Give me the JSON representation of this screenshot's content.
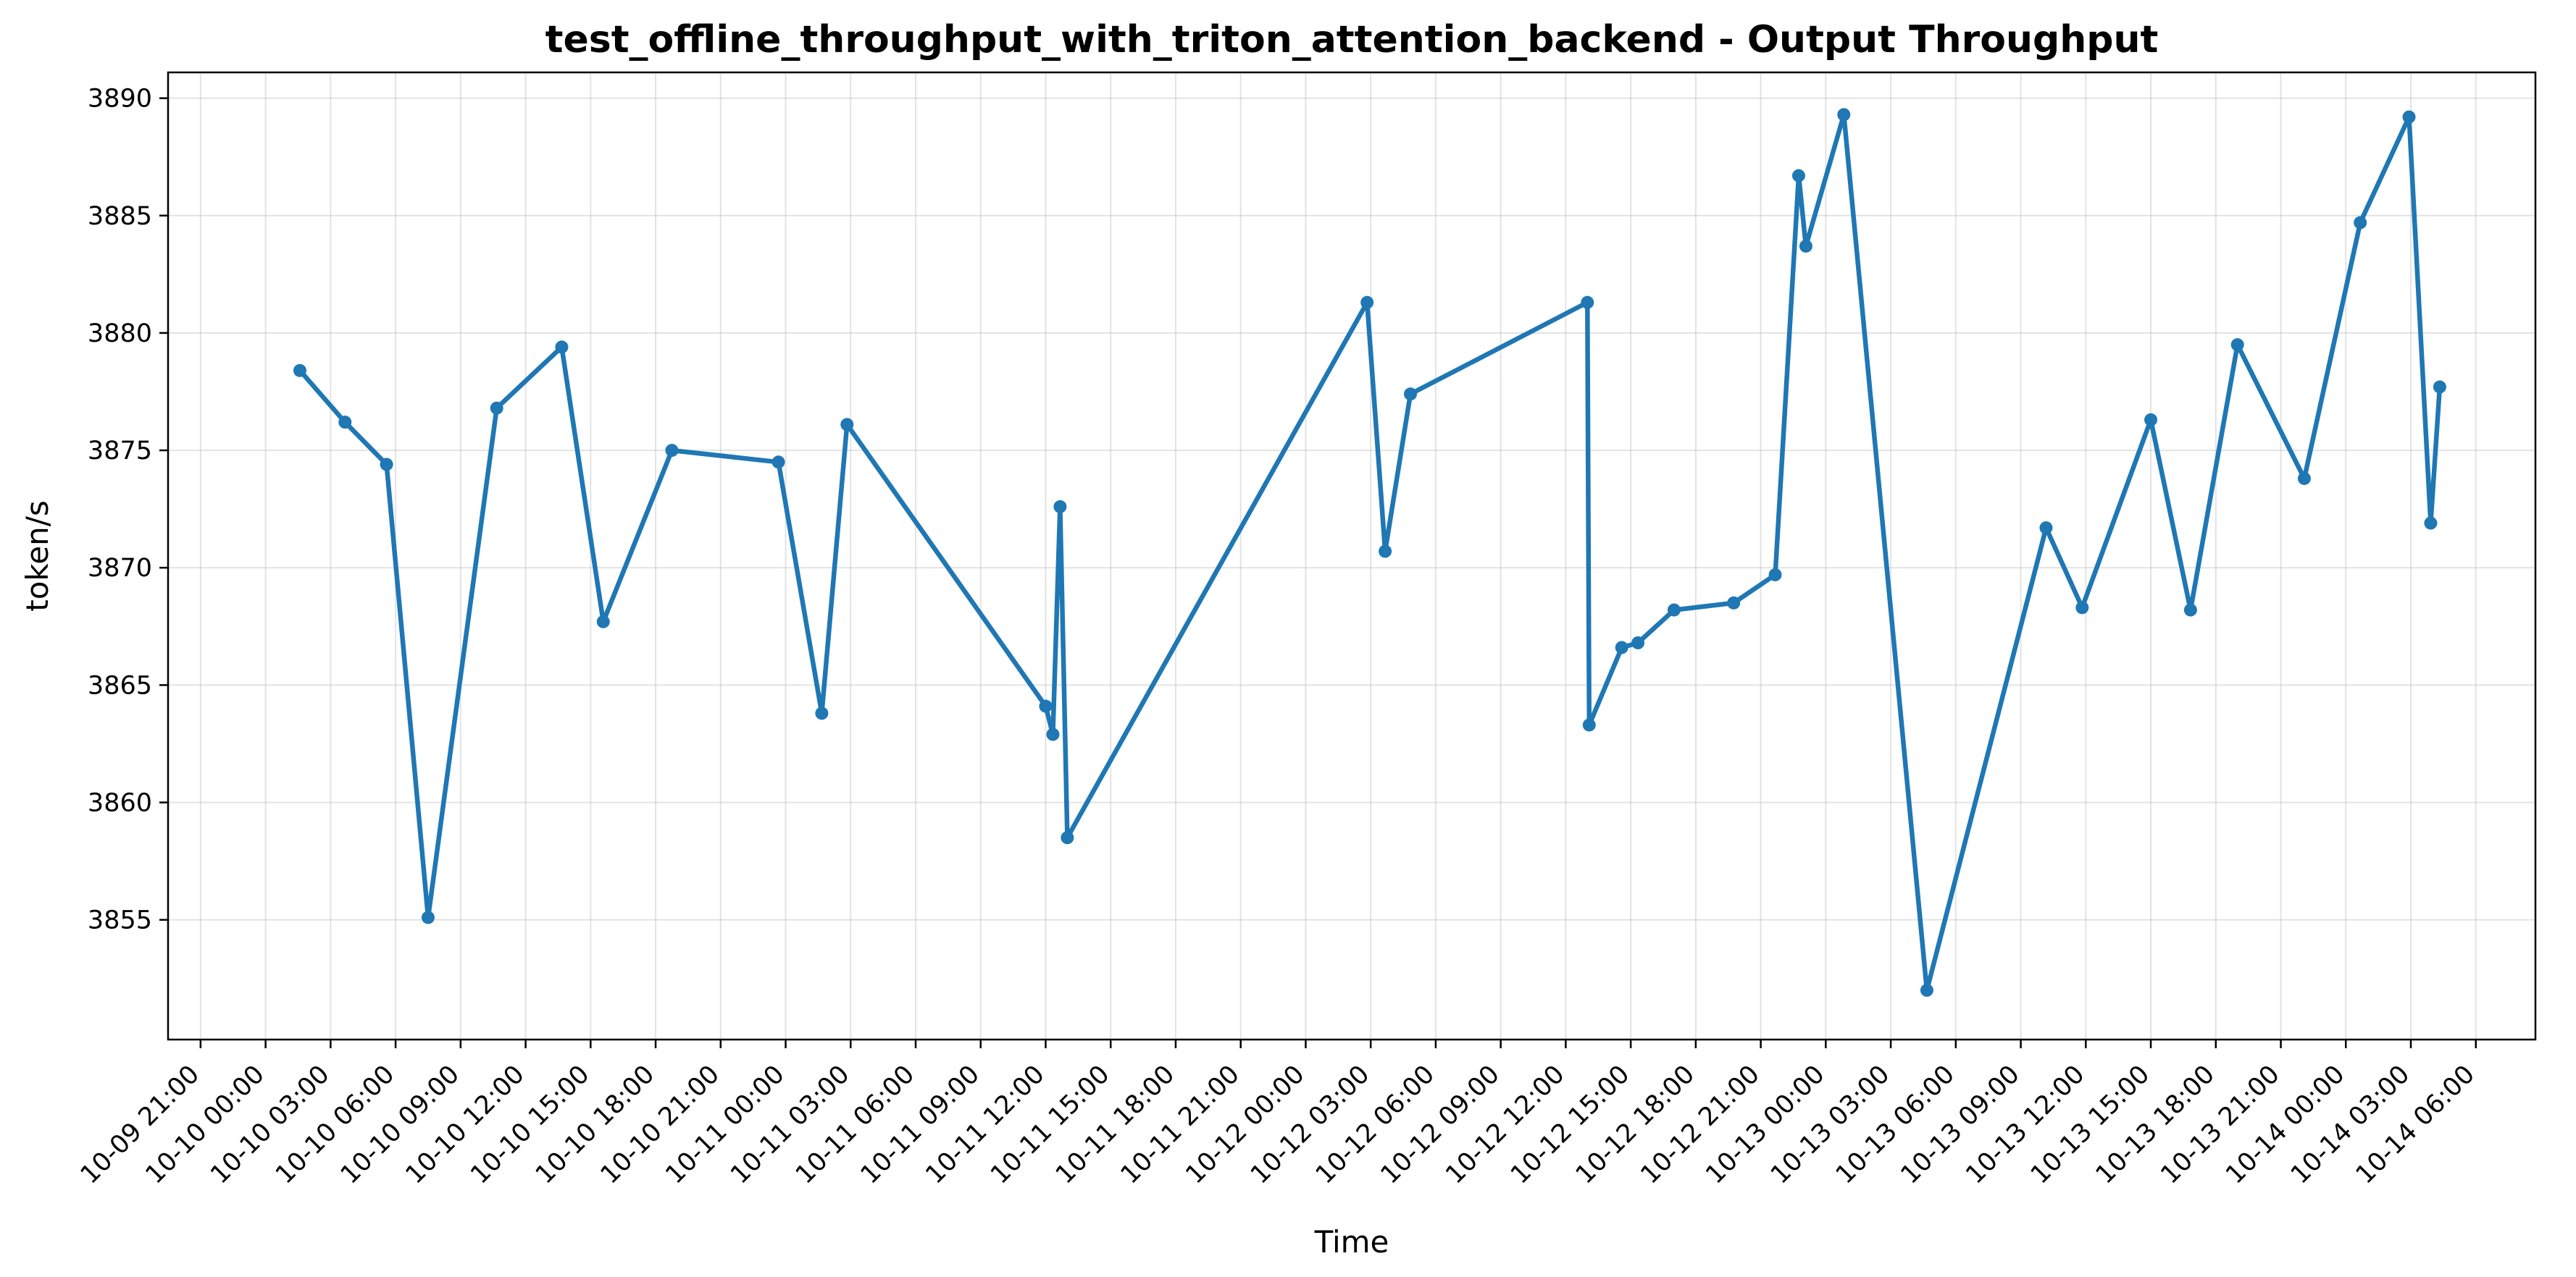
{
  "chart_data": {
    "type": "line",
    "title": "test_offline_throughput_with_triton_attention_backend - Output Throughput",
    "xlabel": "Time",
    "ylabel": "token/s",
    "xlim": [
      "2024-10-09 19:30",
      "2024-10-14 08:45"
    ],
    "ylim": [
      3849.9,
      3891.1
    ],
    "grid": true,
    "y_ticks": [
      3855,
      3860,
      3865,
      3870,
      3875,
      3880,
      3885,
      3890
    ],
    "x_ticks": [
      {
        "t": "2024-10-09 21:00",
        "label": "10-09 21:00"
      },
      {
        "t": "2024-10-10 00:00",
        "label": "10-10 00:00"
      },
      {
        "t": "2024-10-10 03:00",
        "label": "10-10 03:00"
      },
      {
        "t": "2024-10-10 06:00",
        "label": "10-10 06:00"
      },
      {
        "t": "2024-10-10 09:00",
        "label": "10-10 09:00"
      },
      {
        "t": "2024-10-10 12:00",
        "label": "10-10 12:00"
      },
      {
        "t": "2024-10-10 15:00",
        "label": "10-10 15:00"
      },
      {
        "t": "2024-10-10 18:00",
        "label": "10-10 18:00"
      },
      {
        "t": "2024-10-10 21:00",
        "label": "10-10 21:00"
      },
      {
        "t": "2024-10-11 00:00",
        "label": "10-11 00:00"
      },
      {
        "t": "2024-10-11 03:00",
        "label": "10-11 03:00"
      },
      {
        "t": "2024-10-11 06:00",
        "label": "10-11 06:00"
      },
      {
        "t": "2024-10-11 09:00",
        "label": "10-11 09:00"
      },
      {
        "t": "2024-10-11 12:00",
        "label": "10-11 12:00"
      },
      {
        "t": "2024-10-11 15:00",
        "label": "10-11 15:00"
      },
      {
        "t": "2024-10-11 18:00",
        "label": "10-11 18:00"
      },
      {
        "t": "2024-10-11 21:00",
        "label": "10-11 21:00"
      },
      {
        "t": "2024-10-12 00:00",
        "label": "10-12 00:00"
      },
      {
        "t": "2024-10-12 03:00",
        "label": "10-12 03:00"
      },
      {
        "t": "2024-10-12 06:00",
        "label": "10-12 06:00"
      },
      {
        "t": "2024-10-12 09:00",
        "label": "10-12 09:00"
      },
      {
        "t": "2024-10-12 12:00",
        "label": "10-12 12:00"
      },
      {
        "t": "2024-10-12 15:00",
        "label": "10-12 15:00"
      },
      {
        "t": "2024-10-12 18:00",
        "label": "10-12 18:00"
      },
      {
        "t": "2024-10-12 21:00",
        "label": "10-12 21:00"
      },
      {
        "t": "2024-10-13 00:00",
        "label": "10-13 00:00"
      },
      {
        "t": "2024-10-13 03:00",
        "label": "10-13 03:00"
      },
      {
        "t": "2024-10-13 06:00",
        "label": "10-13 06:00"
      },
      {
        "t": "2024-10-13 09:00",
        "label": "10-13 09:00"
      },
      {
        "t": "2024-10-13 12:00",
        "label": "10-13 12:00"
      },
      {
        "t": "2024-10-13 15:00",
        "label": "10-13 15:00"
      },
      {
        "t": "2024-10-13 18:00",
        "label": "10-13 18:00"
      },
      {
        "t": "2024-10-13 21:00",
        "label": "10-13 21:00"
      },
      {
        "t": "2024-10-14 00:00",
        "label": "10-14 00:00"
      },
      {
        "t": "2024-10-14 03:00",
        "label": "10-14 03:00"
      },
      {
        "t": "2024-10-14 06:00",
        "label": "10-14 06:00"
      }
    ],
    "series": [
      {
        "color": "#1f77b4",
        "points": [
          {
            "x": "2024-10-10 01:35",
            "y": 3878.4
          },
          {
            "x": "2024-10-10 03:40",
            "y": 3876.2
          },
          {
            "x": "2024-10-10 05:35",
            "y": 3874.4
          },
          {
            "x": "2024-10-10 07:30",
            "y": 3855.1
          },
          {
            "x": "2024-10-10 10:40",
            "y": 3876.8
          },
          {
            "x": "2024-10-10 13:40",
            "y": 3879.4
          },
          {
            "x": "2024-10-10 15:35",
            "y": 3867.7
          },
          {
            "x": "2024-10-10 18:45",
            "y": 3875.0
          },
          {
            "x": "2024-10-10 23:40",
            "y": 3874.5
          },
          {
            "x": "2024-10-11 01:40",
            "y": 3863.8
          },
          {
            "x": "2024-10-11 02:50",
            "y": 3876.1
          },
          {
            "x": "2024-10-11 12:00",
            "y": 3864.1
          },
          {
            "x": "2024-10-11 12:20",
            "y": 3862.9
          },
          {
            "x": "2024-10-11 12:40",
            "y": 3872.6
          },
          {
            "x": "2024-10-11 13:00",
            "y": 3858.5
          },
          {
            "x": "2024-10-12 02:50",
            "y": 3881.3
          },
          {
            "x": "2024-10-12 03:40",
            "y": 3870.7
          },
          {
            "x": "2024-10-12 04:50",
            "y": 3877.4
          },
          {
            "x": "2024-10-12 13:00",
            "y": 3881.3
          },
          {
            "x": "2024-10-12 13:05",
            "y": 3863.3
          },
          {
            "x": "2024-10-12 14:35",
            "y": 3866.6
          },
          {
            "x": "2024-10-12 15:20",
            "y": 3866.8
          },
          {
            "x": "2024-10-12 17:00",
            "y": 3868.2
          },
          {
            "x": "2024-10-12 19:45",
            "y": 3868.5
          },
          {
            "x": "2024-10-12 21:40",
            "y": 3869.7
          },
          {
            "x": "2024-10-12 22:45",
            "y": 3886.7
          },
          {
            "x": "2024-10-12 23:05",
            "y": 3883.7
          },
          {
            "x": "2024-10-13 00:50",
            "y": 3889.3
          },
          {
            "x": "2024-10-13 04:40",
            "y": 3852.0
          },
          {
            "x": "2024-10-13 10:10",
            "y": 3871.7
          },
          {
            "x": "2024-10-13 11:50",
            "y": 3868.3
          },
          {
            "x": "2024-10-13 15:00",
            "y": 3876.3
          },
          {
            "x": "2024-10-13 16:50",
            "y": 3868.2
          },
          {
            "x": "2024-10-13 19:00",
            "y": 3879.5
          },
          {
            "x": "2024-10-13 22:05",
            "y": 3873.8
          },
          {
            "x": "2024-10-14 00:40",
            "y": 3884.7
          },
          {
            "x": "2024-10-14 02:55",
            "y": 3889.2
          },
          {
            "x": "2024-10-14 03:55",
            "y": 3871.9
          },
          {
            "x": "2024-10-14 04:20",
            "y": 3877.7
          }
        ]
      }
    ]
  }
}
